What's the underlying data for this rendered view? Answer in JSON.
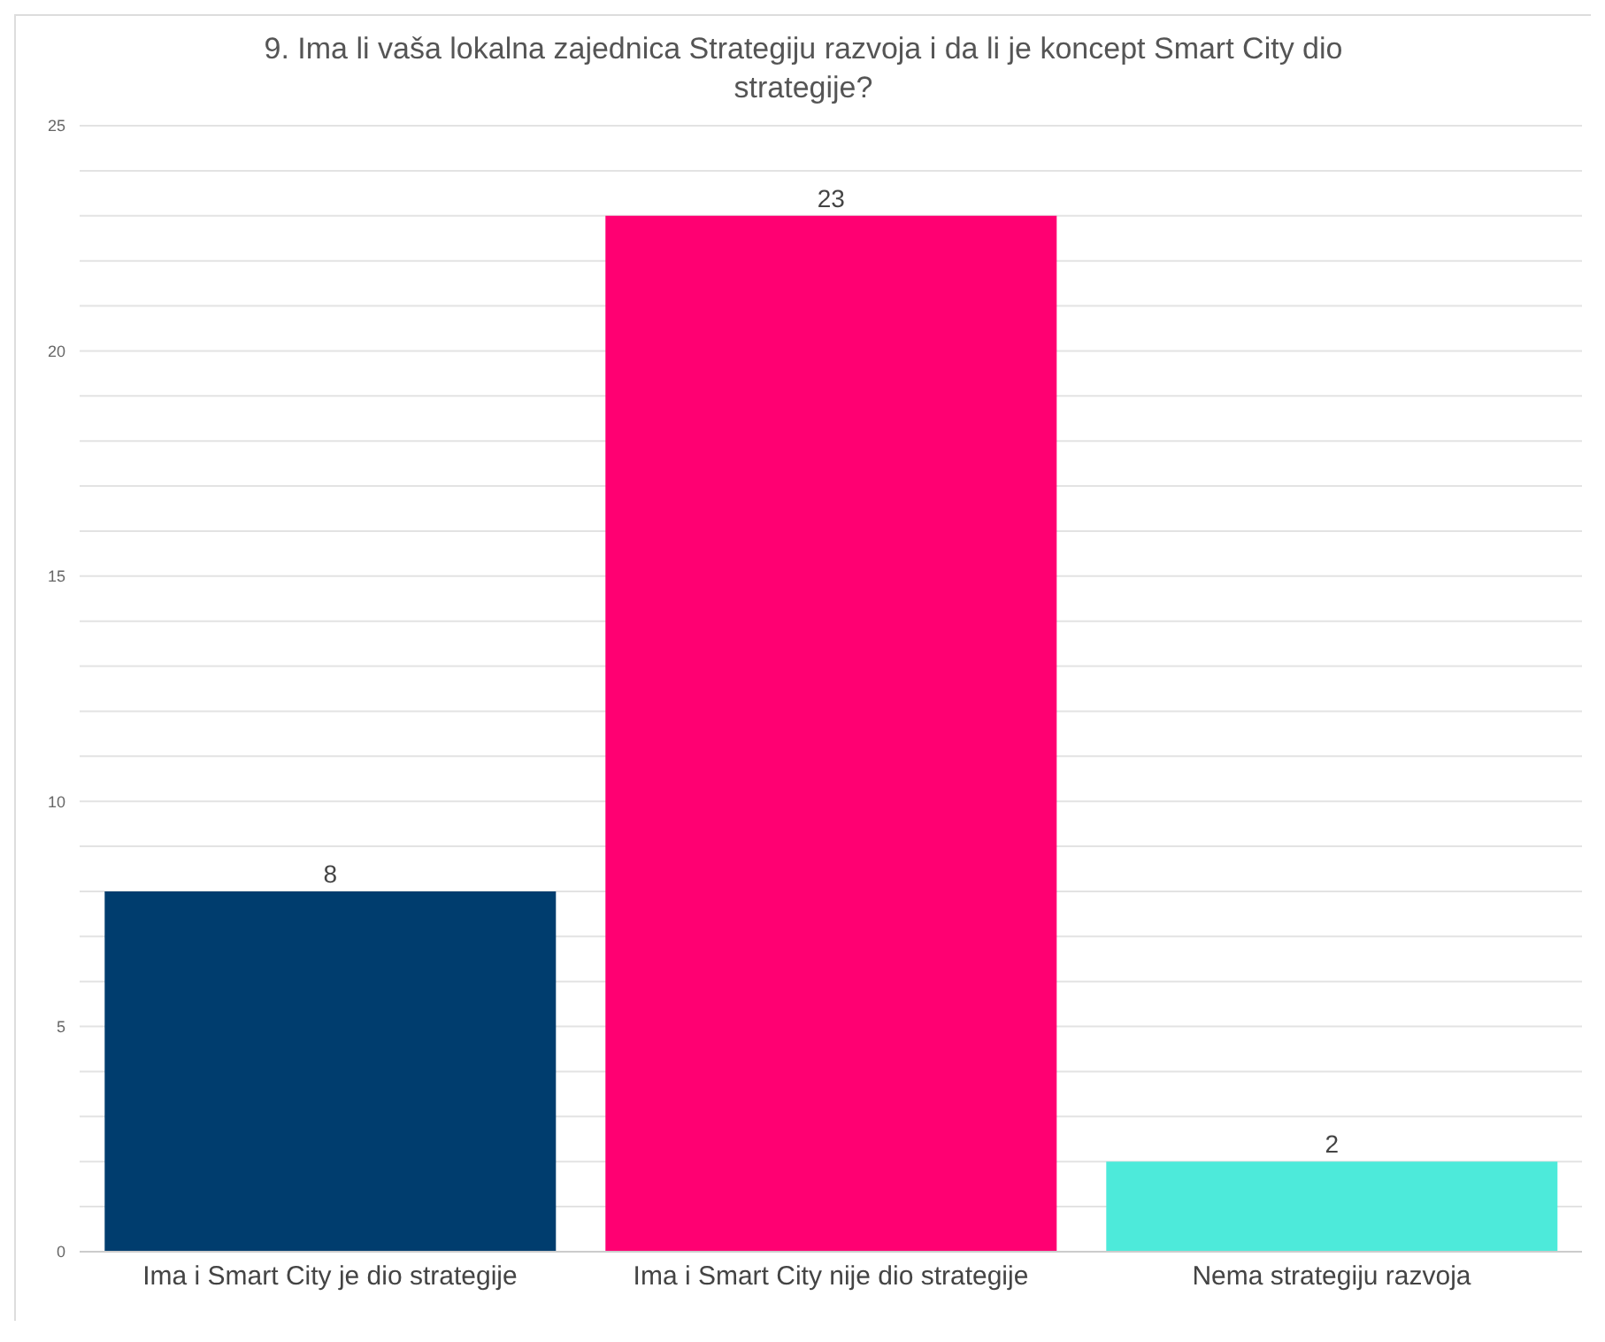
{
  "chart_data": {
    "type": "bar",
    "title": "9. Ima li vaša lokalna zajednica Strategiju razvoja i da li je koncept Smart City dio strategije?",
    "categories": [
      "Ima i Smart City je dio strategije",
      "Ima i Smart City nije dio strategije",
      "Nema strategiju razvoja"
    ],
    "values": [
      8,
      23,
      2
    ],
    "colors": [
      "#003d6e",
      "#ff0072",
      "#4deada"
    ],
    "ylim": [
      0,
      25
    ],
    "yticks": [
      0,
      {
        "value": 1,
        "label": null
      },
      {
        "value": 2,
        "label": null
      },
      {
        "value": 3,
        "label": null
      },
      {
        "value": 4,
        "label": null
      },
      5,
      {
        "value": 6,
        "label": null
      },
      {
        "value": 7,
        "label": null
      },
      {
        "value": 8,
        "label": null
      },
      {
        "value": 9,
        "label": null
      },
      10,
      {
        "value": 11,
        "label": null
      },
      {
        "value": 12,
        "label": null
      },
      {
        "value": 13,
        "label": null
      },
      {
        "value": 14,
        "label": null
      },
      15,
      {
        "value": 16,
        "label": null
      },
      {
        "value": 17,
        "label": null
      },
      {
        "value": 18,
        "label": null
      },
      {
        "value": 19,
        "label": null
      },
      20,
      {
        "value": 21,
        "label": null
      },
      {
        "value": 22,
        "label": null
      },
      {
        "value": 23,
        "label": null
      },
      {
        "value": 24,
        "label": null
      },
      25
    ],
    "grid": "y",
    "data_labels": true
  }
}
